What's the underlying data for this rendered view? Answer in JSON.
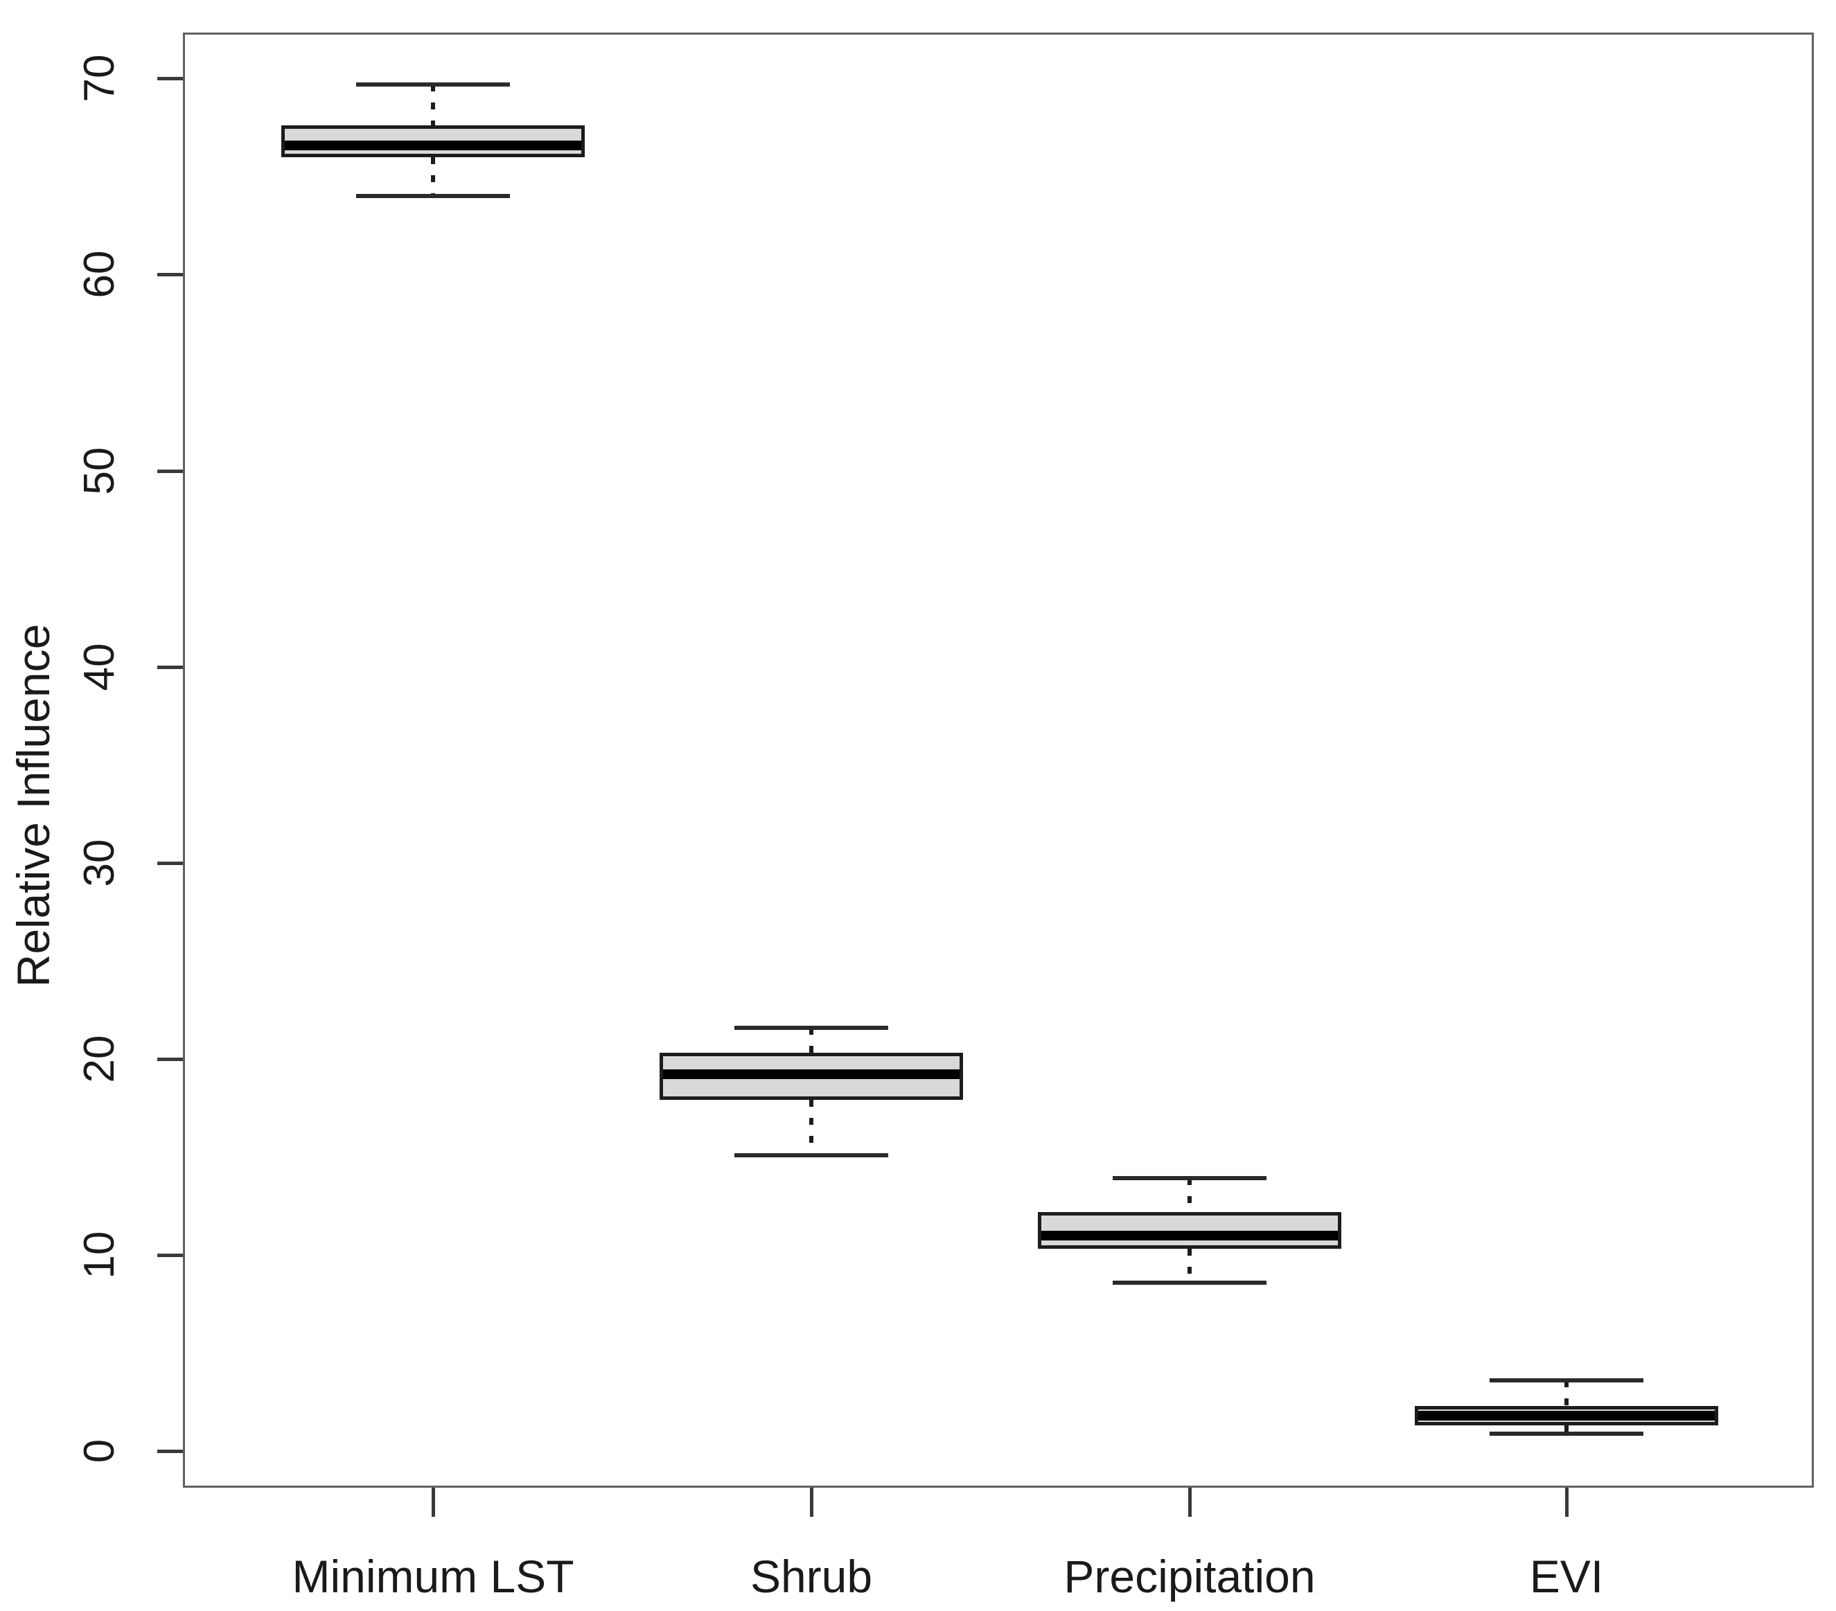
{
  "chart_data": {
    "type": "boxplot",
    "title": "",
    "xlabel": "",
    "ylabel": "Relative Influence",
    "ylim": [
      -1.9,
      72.3
    ],
    "yticks": [
      0,
      10,
      20,
      30,
      40,
      50,
      60,
      70
    ],
    "ytick_labels": [
      "0",
      "10",
      "20",
      "30",
      "40",
      "50",
      "60",
      "70"
    ],
    "categories": [
      "Minimum LST",
      "Shrub",
      "Precipitation",
      "EVI"
    ],
    "series": [
      {
        "name": "Minimum LST",
        "whisker_low": 64.0,
        "q1": 66.0,
        "median": 66.6,
        "q3": 67.6,
        "whisker_high": 69.7
      },
      {
        "name": "Shrub",
        "whisker_low": 15.1,
        "q1": 17.9,
        "median": 19.2,
        "q3": 20.3,
        "whisker_high": 21.6
      },
      {
        "name": "Precipitation",
        "whisker_low": 8.6,
        "q1": 10.3,
        "median": 11.0,
        "q3": 12.2,
        "whisker_high": 13.9
      },
      {
        "name": "EVI",
        "whisker_low": 0.9,
        "q1": 1.3,
        "median": 1.8,
        "q3": 2.3,
        "whisker_high": 3.6
      }
    ],
    "grid": false,
    "legend": null,
    "colors": {
      "box_fill": "#d9d9d9",
      "box_line": "#1c1c1c",
      "median_line": "#000000",
      "frame_line": "#606060",
      "text": "#1a1a1a",
      "background": "#ffffff"
    }
  }
}
